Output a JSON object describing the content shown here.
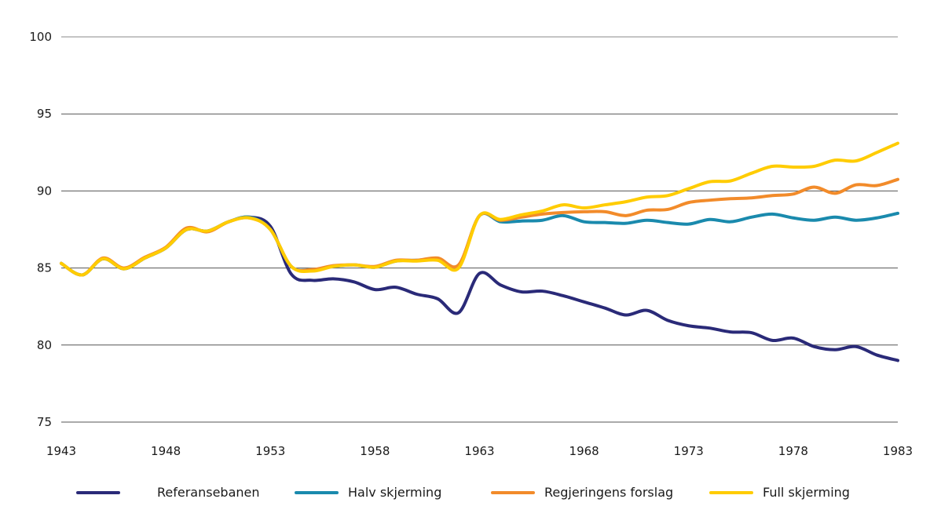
{
  "chart_data": {
    "type": "line",
    "title": "",
    "xlabel": "",
    "ylabel": "",
    "xlim": [
      1943,
      1983
    ],
    "ylim": [
      75,
      100
    ],
    "grid": true,
    "x_ticks": [
      "1943",
      "1948",
      "1953",
      "1958",
      "1963",
      "1968",
      "1973",
      "1978",
      "1983"
    ],
    "y_ticks": [
      "75",
      "80",
      "85",
      "90",
      "95",
      "100"
    ],
    "legend_position": "bottom",
    "x": [
      1943,
      1944,
      1945,
      1946,
      1947,
      1948,
      1949,
      1950,
      1951,
      1952,
      1953,
      1954,
      1955,
      1956,
      1957,
      1958,
      1959,
      1960,
      1961,
      1962,
      1963,
      1964,
      1965,
      1966,
      1967,
      1968,
      1969,
      1970,
      1971,
      1972,
      1973,
      1974,
      1975,
      1976,
      1977,
      1978,
      1979,
      1980,
      1981,
      1982,
      1983
    ],
    "series": [
      {
        "name": "Referansebanen",
        "color": "#2a2a78",
        "values": [
          85.3,
          84.55,
          85.6,
          84.95,
          85.65,
          86.3,
          87.5,
          87.4,
          88.0,
          88.3,
          87.7,
          84.6,
          84.2,
          84.3,
          84.1,
          83.6,
          83.75,
          83.3,
          83.0,
          82.1,
          84.65,
          83.9,
          83.45,
          83.5,
          83.2,
          82.8,
          82.4,
          81.95,
          82.25,
          81.6,
          81.25,
          81.1,
          80.85,
          80.8,
          80.3,
          80.45,
          79.9,
          79.7,
          79.9,
          79.35,
          79.0
        ]
      },
      {
        "name": "Halv skjerming",
        "color": "#1a8aad",
        "values": [
          85.3,
          84.55,
          85.6,
          84.95,
          85.65,
          86.3,
          87.5,
          87.4,
          88.0,
          88.3,
          87.5,
          85.1,
          84.9,
          85.1,
          85.2,
          85.05,
          85.45,
          85.5,
          85.55,
          85.15,
          88.4,
          88.0,
          88.05,
          88.1,
          88.4,
          88.0,
          87.95,
          87.9,
          88.1,
          87.95,
          87.85,
          88.15,
          88.0,
          88.3,
          88.5,
          88.25,
          88.1,
          88.3,
          88.1,
          88.25,
          88.55
        ]
      },
      {
        "name": "Regjeringens forslag",
        "color": "#f28b2a",
        "values": [
          85.3,
          84.55,
          85.65,
          85.0,
          85.7,
          86.35,
          87.6,
          87.35,
          88.0,
          88.25,
          87.5,
          85.1,
          84.9,
          85.15,
          85.2,
          85.1,
          85.5,
          85.5,
          85.65,
          85.2,
          88.4,
          88.1,
          88.3,
          88.5,
          88.6,
          88.65,
          88.65,
          88.4,
          88.75,
          88.8,
          89.25,
          89.4,
          89.5,
          89.55,
          89.7,
          89.8,
          90.25,
          89.85,
          90.4,
          90.35,
          90.75
        ]
      },
      {
        "name": "Full skjerming",
        "color": "#ffcc00",
        "values": [
          85.3,
          84.55,
          85.6,
          84.95,
          85.65,
          86.3,
          87.5,
          87.4,
          88.0,
          88.25,
          87.5,
          85.1,
          84.8,
          85.1,
          85.2,
          85.05,
          85.45,
          85.45,
          85.5,
          85.0,
          88.4,
          88.15,
          88.45,
          88.7,
          89.1,
          88.9,
          89.1,
          89.3,
          89.6,
          89.7,
          90.15,
          90.6,
          90.65,
          91.15,
          91.6,
          91.55,
          91.6,
          92.0,
          91.95,
          92.5,
          93.1
        ]
      }
    ]
  },
  "legend": {
    "items": [
      {
        "label": "Referansebanen",
        "color": "#2a2a78"
      },
      {
        "label": "Halv skjerming",
        "color": "#1a8aad"
      },
      {
        "label": "Regjeringens forslag",
        "color": "#f28b2a"
      },
      {
        "label": "Full skjerming",
        "color": "#ffcc00"
      }
    ]
  }
}
